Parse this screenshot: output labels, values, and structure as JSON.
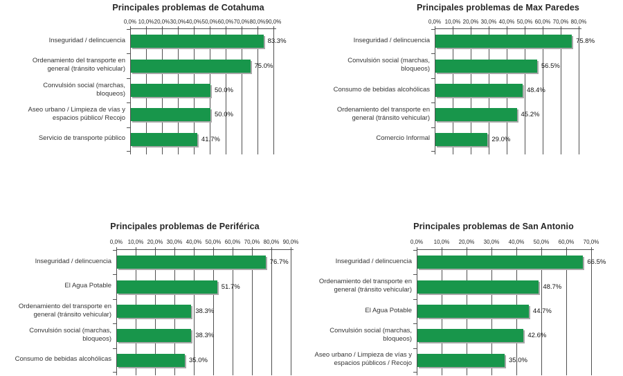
{
  "page": {
    "background": "#ffffff"
  },
  "style": {
    "bar_color": "#18964B",
    "grid_color": "#4f4f4f",
    "bar_shadow_color": "#a8a8a8"
  },
  "chart_data": [
    {
      "type": "bar",
      "orientation": "horizontal",
      "title": "Principales problemas de Cotahuma",
      "bar_color": "#18964B",
      "grid": true,
      "legend": false,
      "axis": {
        "position": "top",
        "min": 0,
        "max": 90,
        "step": 10,
        "tick_labels": [
          "0,0%",
          "10,0%",
          "20,0%",
          "30,0%",
          "40,0%",
          "50,0%",
          "60,0%",
          "70,0%",
          "80,0%",
          "90,0%"
        ]
      },
      "categories": [
        [
          "Inseguridad / delincuencia"
        ],
        [
          "Ordenamiento del transporte en",
          "general (tránsito vehicular)"
        ],
        [
          "Convulsión social (marchas,",
          "bloqueos)"
        ],
        [
          "Aseo urbano / Limpieza de vías y",
          "espacios público/ Recojo"
        ],
        [
          "Servicio de transporte público"
        ]
      ],
      "values": [
        83.3,
        75.0,
        50.0,
        50.0,
        41.7
      ],
      "value_labels": [
        "83.3%",
        "75.0%",
        "50.0%",
        "50.0%",
        "41.7%"
      ]
    },
    {
      "type": "bar",
      "orientation": "horizontal",
      "title": "Principales problemas de Max Paredes",
      "bar_color": "#18964B",
      "grid": true,
      "legend": false,
      "axis": {
        "position": "top",
        "min": 0,
        "max": 80,
        "step": 10,
        "tick_labels": [
          "0,0%",
          "10,0%",
          "20,0%",
          "30,0%",
          "40,0%",
          "50,0%",
          "60,0%",
          "70,0%",
          "80,0%"
        ]
      },
      "categories": [
        [
          "Inseguridad / delincuencia"
        ],
        [
          "Convulsión social (marchas,",
          "bloqueos)"
        ],
        [
          "Consumo de bebidas alcohólicas"
        ],
        [
          "Ordenamiento del transporte en",
          "general (tránsito vehicular)"
        ],
        [
          "Comercio Informal"
        ]
      ],
      "values": [
        75.8,
        56.5,
        48.4,
        45.2,
        29.0
      ],
      "value_labels": [
        "75.8%",
        "56.5%",
        "48.4%",
        "45.2%",
        "29.0%"
      ]
    },
    {
      "type": "bar",
      "orientation": "horizontal",
      "title": "Principales problemas de Periférica",
      "bar_color": "#18964B",
      "grid": true,
      "legend": false,
      "axis": {
        "position": "top",
        "min": 0,
        "max": 90,
        "step": 10,
        "tick_labels": [
          "0,0%",
          "10,0%",
          "20,0%",
          "30,0%",
          "40,0%",
          "50,0%",
          "60,0%",
          "70,0%",
          "80,0%",
          "90,0%"
        ]
      },
      "categories": [
        [
          "Inseguridad / delincuencia"
        ],
        [
          "El Agua Potable"
        ],
        [
          "Ordenamiento del transporte en",
          "general (tránsito vehicular)"
        ],
        [
          "Convulsión social (marchas,",
          "bloqueos)"
        ],
        [
          "Consumo de bebidas alcohólicas"
        ]
      ],
      "values": [
        76.7,
        51.7,
        38.3,
        38.3,
        35.0
      ],
      "value_labels": [
        "76.7%",
        "51.7%",
        "38.3%",
        "38.3%",
        "35.0%"
      ]
    },
    {
      "type": "bar",
      "orientation": "horizontal",
      "title": "Principales problemas de San Antonio",
      "bar_color": "#18964B",
      "grid": true,
      "legend": false,
      "axis": {
        "position": "top",
        "min": 0,
        "max": 70,
        "step": 10,
        "tick_labels": [
          "0,0%",
          "10,0%",
          "20,0%",
          "30,0%",
          "40,0%",
          "50,0%",
          "60,0%",
          "70,0%"
        ]
      },
      "categories": [
        [
          "Inseguridad / delincuencia"
        ],
        [
          "Ordenamiento del transporte en",
          "general (tránsito vehicular)"
        ],
        [
          "El Agua Potable"
        ],
        [
          "Convulsión social (marchas,",
          "bloqueos)"
        ],
        [
          "Aseo urbano / Limpieza de vías y",
          "espacios públicos / Recojo"
        ]
      ],
      "values": [
        66.5,
        48.7,
        44.7,
        42.6,
        35.0
      ],
      "value_labels": [
        "66.5%",
        "48.7%",
        "44.7%",
        "42.6%",
        "35.0%"
      ]
    }
  ]
}
